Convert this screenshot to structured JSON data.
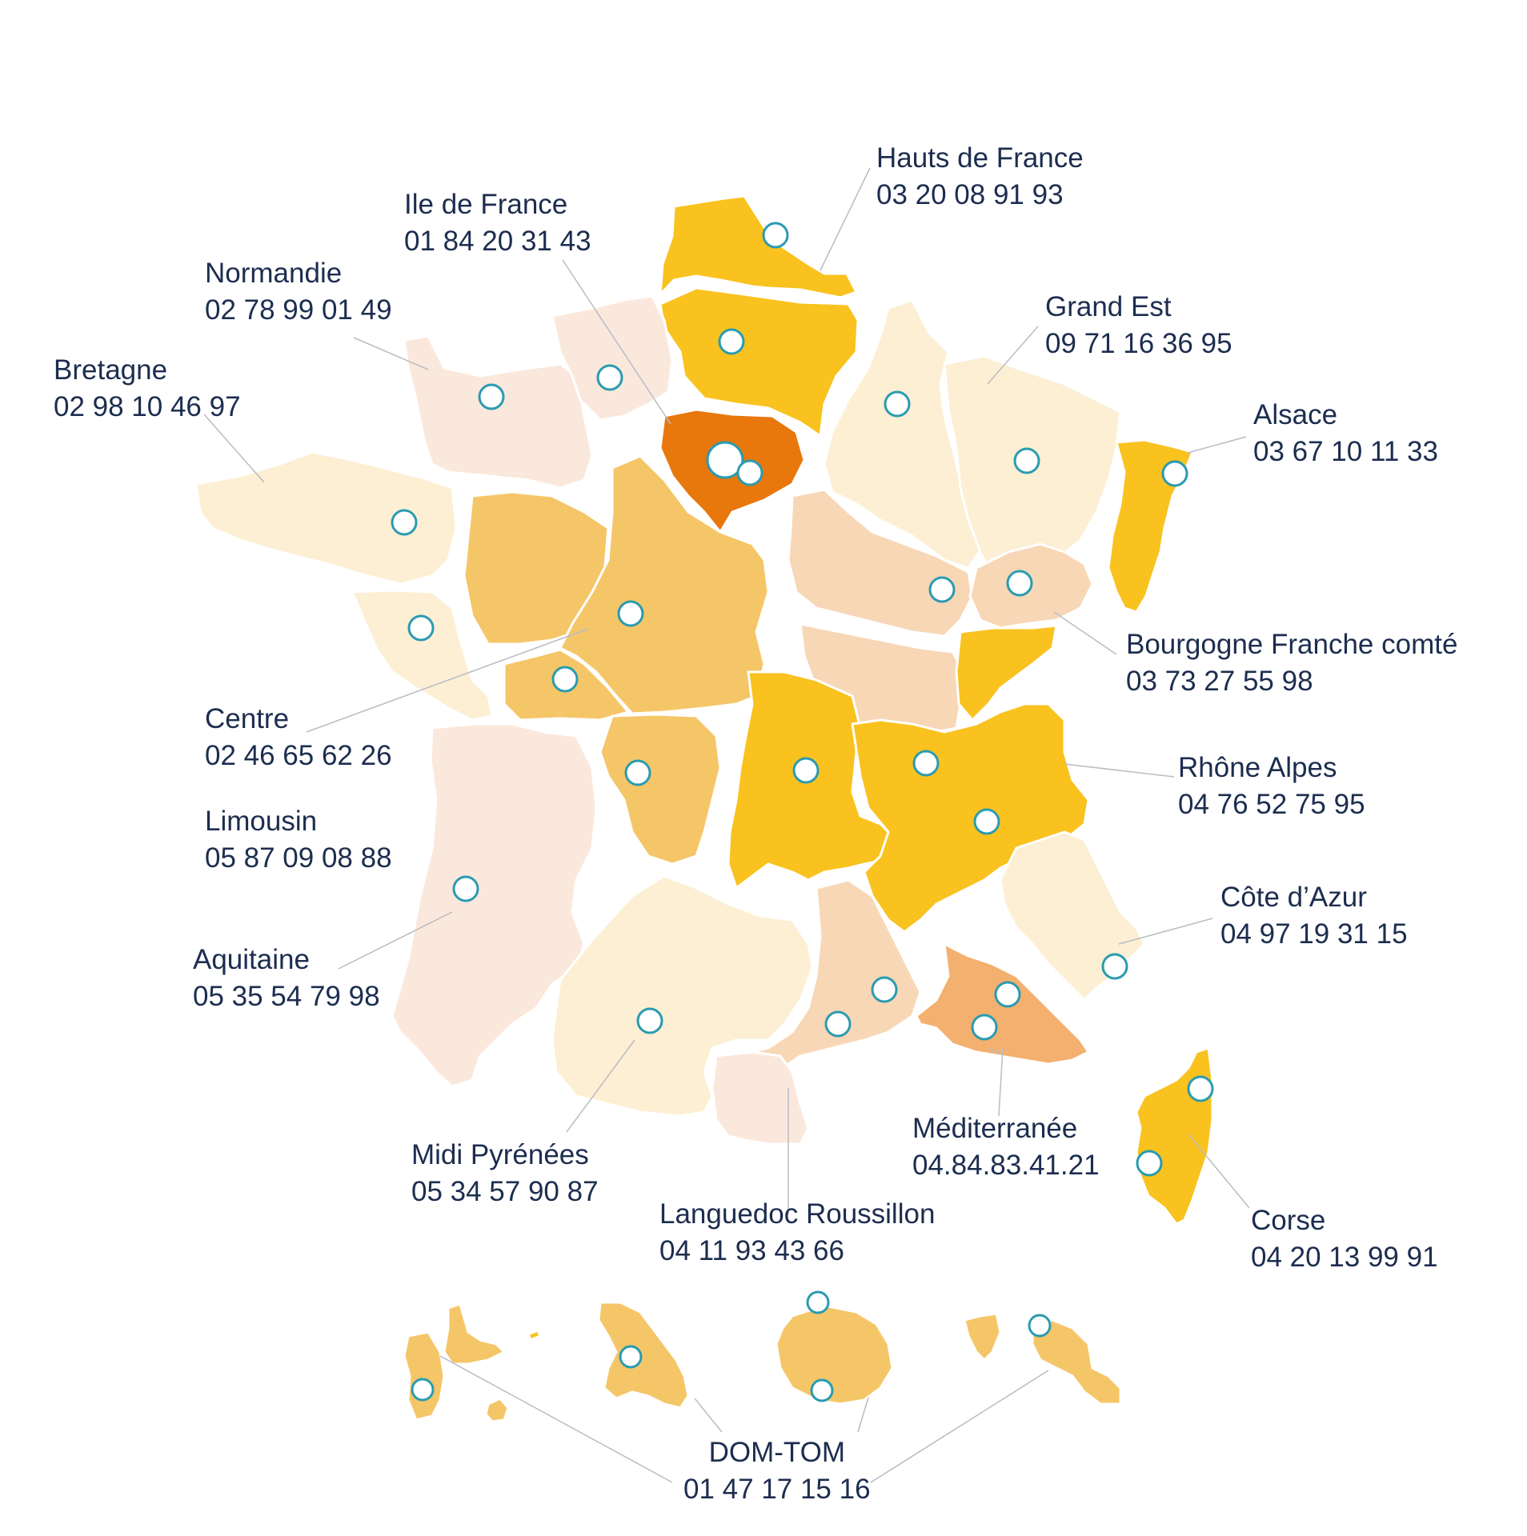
{
  "colors": {
    "marker_stroke": "#2a9bb0",
    "marker_fill": "#ffffff",
    "leader_line": "#b9bcc4",
    "text": "#1c2d4f",
    "region_darkest": "#e8770c",
    "region_dark": "#f9c21f",
    "region_mid": "#f5c668",
    "region_med": "#f3b06e",
    "region_light": "#f8d7b7",
    "region_pale": "#fcefd3",
    "region_palest": "#fbe8dc"
  },
  "regions": [
    {
      "name": "Hauts de France",
      "phone": "03 20 08 91 93"
    },
    {
      "name": "Ile de France",
      "phone": "01 84 20 31 43"
    },
    {
      "name": "Normandie",
      "phone": "02 78 99 01 49"
    },
    {
      "name": "Bretagne",
      "phone": "02 98 10 46 97"
    },
    {
      "name": "Grand Est",
      "phone": "09 71 16 36 95"
    },
    {
      "name": "Alsace",
      "phone": "03 67 10 11 33"
    },
    {
      "name": "Bourgogne Franche comté",
      "phone": "03 73 27 55 98"
    },
    {
      "name": "Centre",
      "phone": "02 46 65 62 26"
    },
    {
      "name": "Rhône Alpes",
      "phone": "04 76 52 75 95"
    },
    {
      "name": "Limousin",
      "phone": "05 87 09 08 88"
    },
    {
      "name": "Côte d’Azur",
      "phone": "04 97 19 31 15"
    },
    {
      "name": "Aquitaine",
      "phone": "05 35 54 79 98"
    },
    {
      "name": "Méditerranée",
      "phone": "04.84.83.41.21"
    },
    {
      "name": "Midi Pyrénées",
      "phone": "05 34 57 90 87"
    },
    {
      "name": "Corse",
      "phone": "04 20 13 99 91"
    },
    {
      "name": "Languedoc Roussillon",
      "phone": "04 11 93 43 66"
    },
    {
      "name": "DOM-TOM",
      "phone": "01 47 17 15 16"
    }
  ]
}
